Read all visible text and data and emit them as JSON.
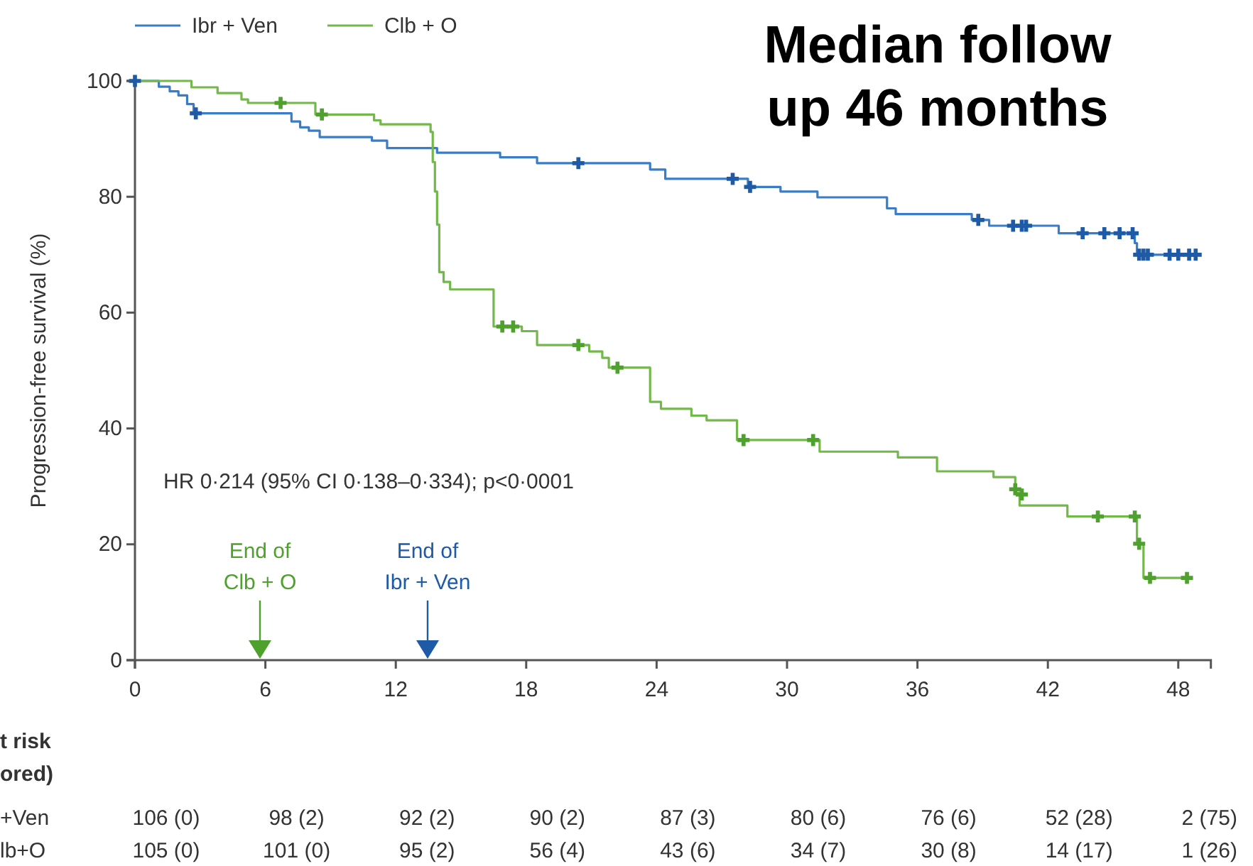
{
  "chart_data": {
    "type": "step",
    "title": "Median follow up 46 months",
    "ylabel": "Progression-free survival (%)",
    "xlim": [
      0,
      49.5
    ],
    "xticks": [
      0,
      6,
      12,
      18,
      24,
      30,
      36,
      42,
      48
    ],
    "ylim": [
      0,
      100
    ],
    "yticks": [
      0,
      20,
      40,
      60,
      80,
      100
    ],
    "legend": "top",
    "grid": false,
    "series": [
      {
        "name": "Ibr + Ven",
        "color": "#3a7cc6",
        "x": [
          0,
          1.1,
          1.6,
          2.0,
          2.4,
          2.7,
          7.2,
          7.6,
          8.0,
          8.5,
          10.9,
          11.6,
          13.9,
          16.8,
          18.5,
          23.7,
          24.4,
          28.2,
          29.7,
          31.4,
          34.6,
          35.0,
          38.5,
          39.3,
          42.5,
          46.0,
          46.1,
          48.8
        ],
        "values": [
          100,
          99.0,
          98.2,
          97.5,
          96.0,
          94.4,
          93.0,
          92.0,
          91.4,
          90.3,
          89.7,
          88.4,
          87.6,
          86.8,
          85.8,
          84.7,
          83.1,
          81.7,
          80.9,
          79.9,
          78.0,
          77.0,
          76.0,
          75.0,
          73.7,
          72.0,
          70.0,
          70.0
        ]
      },
      {
        "name": "Clb + O",
        "color": "#72b84a",
        "x": [
          0,
          2.6,
          3.8,
          4.9,
          5.2,
          8.3,
          11.0,
          11.3,
          13.6,
          13.7,
          13.8,
          13.9,
          14.0,
          14.2,
          14.5,
          16.5,
          17.8,
          18.5,
          20.9,
          21.5,
          21.8,
          23.7,
          24.2,
          25.6,
          26.3,
          27.7,
          31.5,
          35.1,
          36.9,
          39.5,
          40.5,
          40.7,
          42.9,
          46.1,
          46.4,
          48.4
        ],
        "values": [
          100,
          98.9,
          97.9,
          96.8,
          96.2,
          94.2,
          93.2,
          92.5,
          91.2,
          86.0,
          80.9,
          75.2,
          67.0,
          65.3,
          64.0,
          57.6,
          56.8,
          54.4,
          53.3,
          52.2,
          50.5,
          44.6,
          43.4,
          42.2,
          41.4,
          38.0,
          36.0,
          35.0,
          32.6,
          31.6,
          28.9,
          26.7,
          24.8,
          20.1,
          14.2,
          14.2
        ]
      },
      {
        "type": "scatter",
        "marker": "cross",
        "color": "#1f5aa6",
        "x": [
          0,
          2.8,
          20.4,
          27.5,
          28.3,
          38.8,
          40.4,
          40.8,
          41.0,
          43.6,
          44.6,
          45.3,
          45.9,
          46.2,
          46.4,
          46.6,
          47.6,
          48.0,
          48.5,
          48.8
        ],
        "values": [
          100,
          94.4,
          85.8,
          83.1,
          81.7,
          76.0,
          75.0,
          75.0,
          75.0,
          73.7,
          73.7,
          73.7,
          73.7,
          70.0,
          70.0,
          70.0,
          70.0,
          70.0,
          70.0,
          70.0
        ]
      },
      {
        "type": "scatter",
        "marker": "cross",
        "color": "#4ea12c",
        "x": [
          6.7,
          8.6,
          16.9,
          17.4,
          20.4,
          22.2,
          28.0,
          31.2,
          40.5,
          40.8,
          44.3,
          46.0,
          46.2,
          46.7,
          48.4
        ],
        "values": [
          96.2,
          94.2,
          57.6,
          57.6,
          54.4,
          50.5,
          38.0,
          38.0,
          29.5,
          28.6,
          24.8,
          24.8,
          20.1,
          14.2,
          14.2
        ]
      }
    ],
    "annotations": [
      "HR 0·214 (95% CI 0·138–0·334); p<0·0001",
      "End of Clb + O",
      "End of Ibr + Ven",
      "t risk",
      "ored)",
      "+Ven",
      "lb+O",
      "106 (0)",
      "98 (2)",
      "92 (2)",
      "90 (2)",
      "87 (3)",
      "80 (6)",
      "76 (6)",
      "52 (28)",
      "2 (75)",
      "105 (0)",
      "101 (0)",
      "95 (2)",
      "56 (4)",
      "43 (6)",
      "34 (7)",
      "30 (8)",
      "14 (17)",
      "1 (26)"
    ]
  }
}
